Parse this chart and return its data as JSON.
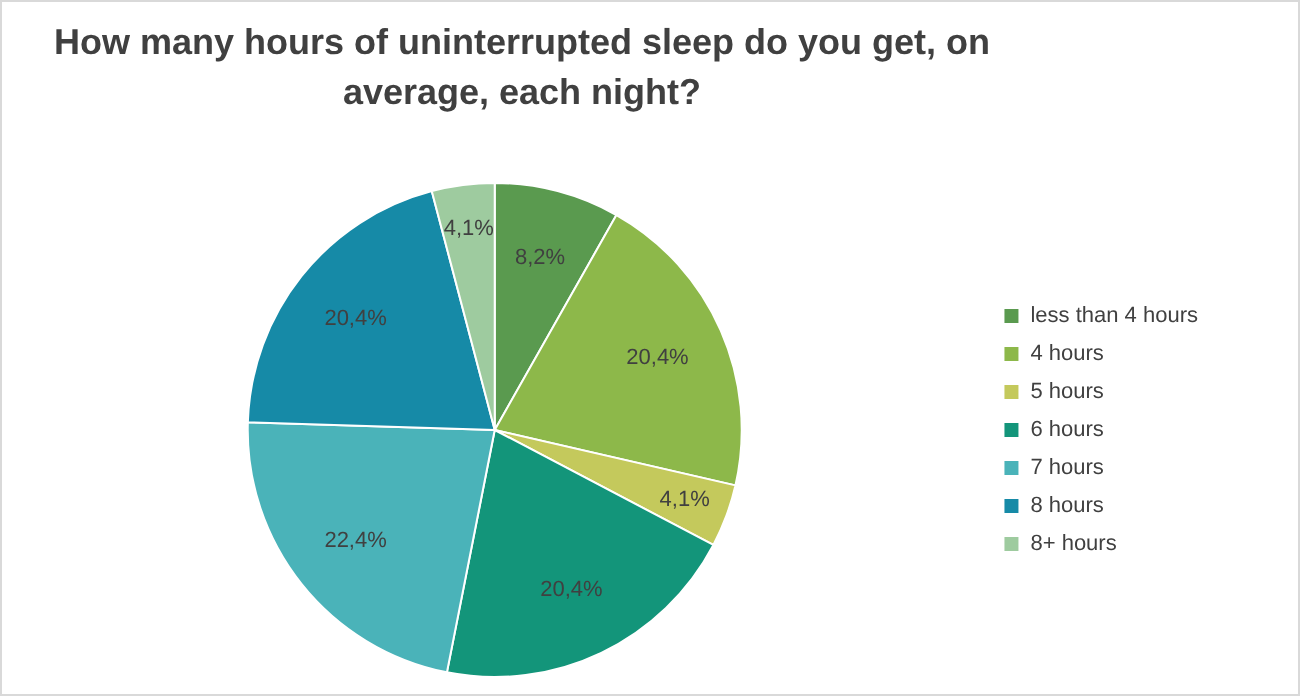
{
  "chart_data": {
    "type": "pie",
    "title": "How many hours of uninterrupted sleep do you get, on average, each night?",
    "categories": [
      "less than 4 hours",
      "4 hours",
      "5 hours",
      "6 hours",
      "7 hours",
      "8 hours",
      "8+ hours"
    ],
    "values": [
      8.2,
      20.4,
      4.1,
      20.4,
      22.4,
      20.4,
      4.1
    ],
    "value_labels": [
      "8,2%",
      "20,4%",
      "4,1%",
      "20,4%",
      "22,4%",
      "20,4%",
      "4,1%"
    ],
    "colors": [
      "#5a9a4f",
      "#8db84a",
      "#c4c95c",
      "#13957a",
      "#4ab3b9",
      "#168aa7",
      "#9ecb9f"
    ],
    "legend": "right"
  }
}
